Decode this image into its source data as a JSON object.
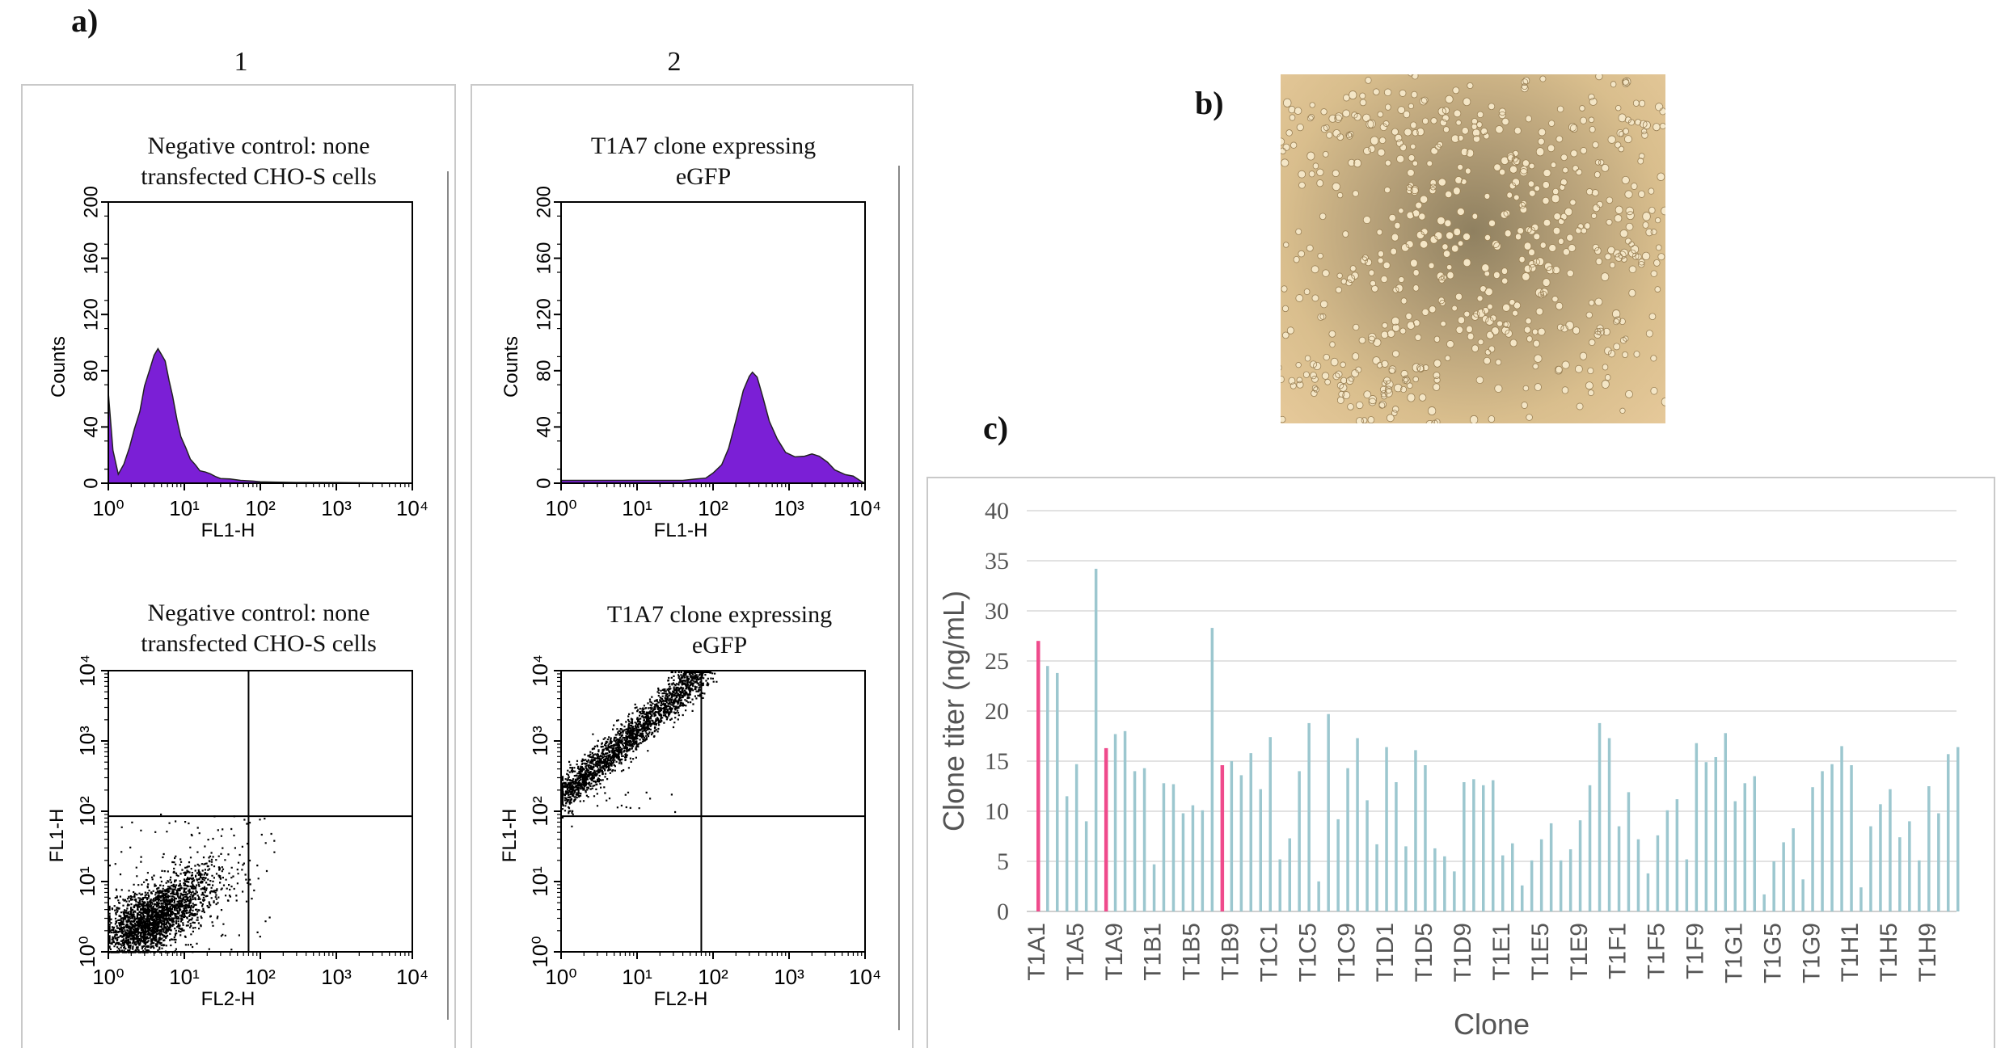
{
  "figure": {
    "panel_a_label": "a)",
    "panel_b_label": "b)",
    "panel_c_label": "c)",
    "column_1": "1",
    "column_2": "2",
    "colors": {
      "histogram_fill": "#7b1fd6",
      "bar_default": "#9cc7cf",
      "bar_highlight": "#ef4b8c",
      "gridline": "#d9d9d9",
      "box_border": "#c9c9c9"
    }
  },
  "chart_data": [
    {
      "id": "hist-negative",
      "type": "area",
      "title": "Negative control: none transfected CHO-S cells",
      "title_lines": [
        "Negative control: none",
        "transfected CHO-S cells"
      ],
      "xlabel": "FL1-H",
      "ylabel": "Counts",
      "xscale": "log",
      "xlim": [
        1,
        10000
      ],
      "ylim": [
        0,
        200
      ],
      "x_ticks": [
        1,
        10,
        100,
        1000,
        10000
      ],
      "x_tick_labels": [
        "10⁰",
        "10¹",
        "10²",
        "10³",
        "10⁴"
      ],
      "y_ticks": [
        0,
        40,
        80,
        120,
        160,
        200
      ],
      "peak": {
        "x": 4.5,
        "y": 95
      },
      "x": [
        1.0,
        1.15,
        1.35,
        1.6,
        1.9,
        2.2,
        2.6,
        3.0,
        3.5,
        4.0,
        4.5,
        5.0,
        5.6,
        6.3,
        7.0,
        8.0,
        9.0,
        10.5,
        12,
        14,
        16,
        19,
        22,
        26,
        30,
        40,
        55,
        80,
        100,
        150,
        300,
        1000,
        10000
      ],
      "y": [
        64,
        24,
        6,
        12,
        25,
        38,
        52,
        68,
        80,
        90,
        95,
        92,
        86,
        74,
        62,
        46,
        34,
        24,
        16,
        12,
        10,
        8,
        6,
        5,
        4,
        3,
        2,
        1.5,
        1,
        0.8,
        0.5,
        0.4,
        0
      ]
    },
    {
      "id": "hist-t1a7",
      "type": "area",
      "title": "T1A7 clone expressing eGFP",
      "title_lines": [
        "T1A7 clone expressing",
        "eGFP"
      ],
      "xlabel": "FL1-H",
      "ylabel": "Counts",
      "xscale": "log",
      "xlim": [
        1,
        10000
      ],
      "ylim": [
        0,
        200
      ],
      "x_ticks": [
        1,
        10,
        100,
        1000,
        10000
      ],
      "x_tick_labels": [
        "10⁰",
        "10¹",
        "10²",
        "10³",
        "10⁴"
      ],
      "y_ticks": [
        0,
        40,
        80,
        120,
        160,
        200
      ],
      "peak": {
        "x": 330,
        "y": 80
      },
      "x": [
        1,
        2,
        5,
        10,
        20,
        40,
        60,
        80,
        100,
        130,
        160,
        200,
        250,
        300,
        330,
        380,
        450,
        550,
        700,
        900,
        1200,
        1600,
        2000,
        2500,
        3200,
        4000,
        5500,
        7000,
        8500,
        10000
      ],
      "y": [
        2,
        2,
        2,
        2,
        2,
        2,
        3,
        4,
        6,
        12,
        25,
        45,
        65,
        77,
        80,
        76,
        62,
        44,
        30,
        22,
        18,
        20,
        21,
        18,
        14,
        10,
        6,
        4,
        2,
        0
      ]
    },
    {
      "id": "dot-negative",
      "type": "scatter",
      "title": "Negative control: none transfected CHO-S cells",
      "title_lines": [
        "Negative control: none",
        "transfected CHO-S cells"
      ],
      "xlabel": "FL2-H",
      "ylabel": "FL1-H",
      "xscale": "log",
      "yscale": "log",
      "xlim": [
        1,
        10000
      ],
      "ylim": [
        1,
        10000
      ],
      "x_tick_labels": [
        "10⁰",
        "10¹",
        "10²",
        "10³",
        "10⁴"
      ],
      "y_tick_labels": [
        "10⁰",
        "10¹",
        "10²",
        "10³",
        "10⁴"
      ],
      "quadrant_gates": {
        "x": 70,
        "y": 85
      },
      "distribution": "diagonal population from (1,1) to about (60,60), densest at 1–10"
    },
    {
      "id": "dot-t1a7",
      "type": "scatter",
      "title": "T1A7 clone expressing eGFP",
      "title_lines": [
        "T1A7 clone expressing",
        "eGFP"
      ],
      "xlabel": "FL2-H",
      "ylabel": "FL1-H",
      "xscale": "log",
      "yscale": "log",
      "xlim": [
        1,
        10000
      ],
      "ylim": [
        1,
        10000
      ],
      "x_tick_labels": [
        "10⁰",
        "10¹",
        "10²",
        "10³",
        "10⁴"
      ],
      "y_tick_labels": [
        "10⁰",
        "10¹",
        "10²",
        "10³",
        "10⁴"
      ],
      "quadrant_gates": {
        "x": 70,
        "y": 85
      },
      "distribution": "diagonal population from about (1,150) to (70,10000) in the upper-left quadrant"
    },
    {
      "id": "bar-titer",
      "type": "bar",
      "xlabel": "Clone",
      "ylabel": "Clone titer (ng/mL)",
      "ylim": [
        0,
        40
      ],
      "y_ticks": [
        0,
        5,
        10,
        15,
        20,
        25,
        30,
        35,
        40
      ],
      "grid": true,
      "x_tick_labels": [
        "T1A1",
        "T1A5",
        "T1A9",
        "T1B1",
        "T1B5",
        "T1B9",
        "T1C1",
        "T1C5",
        "T1C9",
        "T1D1",
        "T1D5",
        "T1D9",
        "T1E1",
        "T1E5",
        "T1E9",
        "T1F1",
        "T1F5",
        "T1F9",
        "T1G1",
        "T1G5",
        "T1G9",
        "T1H1",
        "T1H5",
        "T1H9"
      ],
      "highlighted_indices": [
        0,
        7,
        19
      ],
      "values": [
        27,
        24.5,
        23.8,
        11.5,
        14.7,
        9,
        34.2,
        16.3,
        17.7,
        18,
        14,
        14.3,
        4.7,
        12.8,
        12.7,
        9.8,
        10.6,
        10.1,
        28.3,
        14.6,
        15,
        13.6,
        15.8,
        12.2,
        17.4,
        5.2,
        7.3,
        14,
        18.8,
        3,
        19.7,
        9.2,
        14.3,
        17.3,
        11.1,
        6.7,
        16.4,
        12.9,
        6.5,
        16.1,
        14.6,
        6.3,
        5.5,
        4,
        12.9,
        13.2,
        12.6,
        13.1,
        5.6,
        6.8,
        2.6,
        5.1,
        7.2,
        8.8,
        5.1,
        6.2,
        9.1,
        12.6,
        18.8,
        17.3,
        8.5,
        11.9,
        7.2,
        3.8,
        7.6,
        10.1,
        11.2,
        5.2,
        16.8,
        14.9,
        15.4,
        17.8,
        11,
        12.8,
        13.5,
        1.7,
        5,
        6.9,
        8.3,
        3.2,
        12.4,
        14,
        14.7,
        16.5,
        14.6,
        2.4,
        8.5,
        10.7,
        12.2,
        7.4,
        9,
        5.1,
        12.5,
        9.8,
        15.7,
        16.4
      ]
    }
  ]
}
